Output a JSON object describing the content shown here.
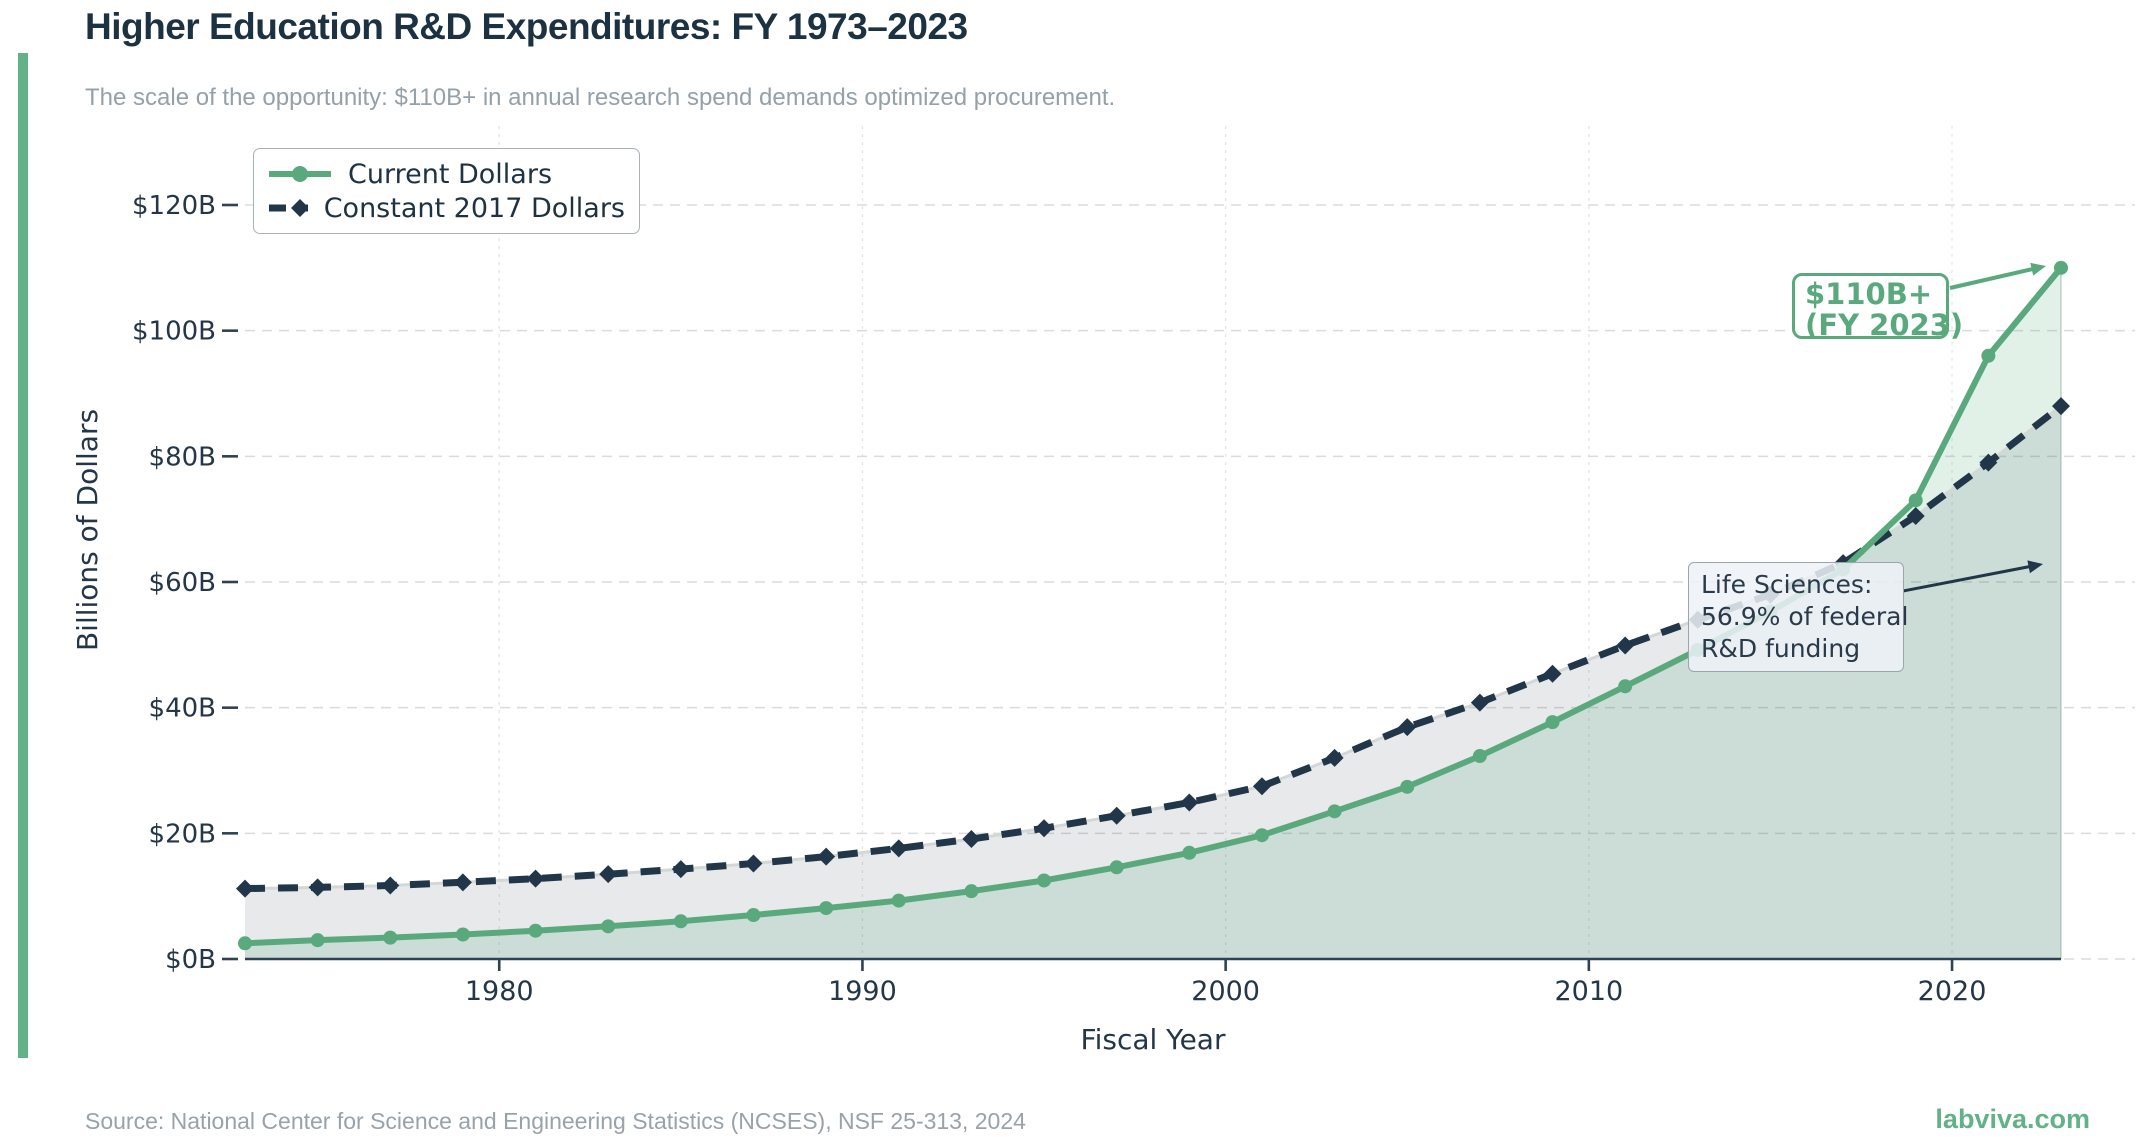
{
  "header": {
    "title": "Higher Education R&D Expenditures: FY 1973–2023",
    "subtitle": "The scale of the opportunity: $110B+ in annual research spend demands optimized procurement."
  },
  "footer": {
    "source": "Source: National Center for Science and Engineering Statistics (NCSES), NSF 25-313, 2024",
    "brand": "labviva.com"
  },
  "annotations": {
    "peak": {
      "line1": "$110B+",
      "line2": "(FY 2023)"
    },
    "life_sciences": {
      "line1": "Life Sciences:",
      "line2": "56.9% of federal",
      "line3": "R&D funding"
    }
  },
  "colors": {
    "accent_green": "#63b287",
    "series_green": "#5aa97d",
    "series_dark": "#223649",
    "grid": "#d9dcde",
    "vgrid": "#e4e6e8",
    "tick_text": "#243647",
    "axis_line": "#2f4254",
    "green_fill": "rgba(95,178,134,0.19)",
    "gray_fill": "rgba(34,52,71,0.11)",
    "dash_underlay": "#d3d8d5"
  },
  "chart_data": {
    "type": "line",
    "title": "Higher Education R&D Expenditures: FY 1973–2023",
    "xlabel": "Fiscal Year",
    "ylabel": "Billions of Dollars",
    "xlim": [
      1972.8,
      2024.1
    ],
    "ylim": [
      0,
      132
    ],
    "grid": true,
    "legend_position": "upper-left",
    "x": [
      1973,
      1975,
      1977,
      1979,
      1981,
      1983,
      1985,
      1987,
      1989,
      1991,
      1993,
      1995,
      1997,
      1999,
      2001,
      2003,
      2005,
      2007,
      2009,
      2011,
      2013,
      2015,
      2017,
      2019,
      2021,
      2023
    ],
    "series": [
      {
        "name": "Current Dollars",
        "style": "solid",
        "marker": "circle",
        "values": [
          2.5,
          3.0,
          3.4,
          3.9,
          4.5,
          5.2,
          6.0,
          7.0,
          8.1,
          9.3,
          10.8,
          12.5,
          14.6,
          16.9,
          19.7,
          23.5,
          27.4,
          32.3,
          37.7,
          43.4,
          49.2,
          55.3,
          62.0,
          73.0,
          96.0,
          110.0
        ]
      },
      {
        "name": "Constant 2017 Dollars",
        "style": "dashed",
        "marker": "diamond",
        "values": [
          11.2,
          11.4,
          11.7,
          12.2,
          12.8,
          13.5,
          14.3,
          15.2,
          16.3,
          17.6,
          19.1,
          20.8,
          22.8,
          24.9,
          27.5,
          32.0,
          36.9,
          40.8,
          45.4,
          49.9,
          54.0,
          58.0,
          63.0,
          70.5,
          79.0,
          88.0
        ]
      }
    ],
    "x_ticks": [
      1980,
      1990,
      2000,
      2010,
      2020
    ],
    "y_ticks": [
      {
        "value": 0,
        "label": "$0B"
      },
      {
        "value": 20,
        "label": "$20B"
      },
      {
        "value": 40,
        "label": "$40B"
      },
      {
        "value": 60,
        "label": "$60B"
      },
      {
        "value": 80,
        "label": "$80B"
      },
      {
        "value": 100,
        "label": "$100B"
      },
      {
        "value": 120,
        "label": "$120B"
      }
    ]
  }
}
